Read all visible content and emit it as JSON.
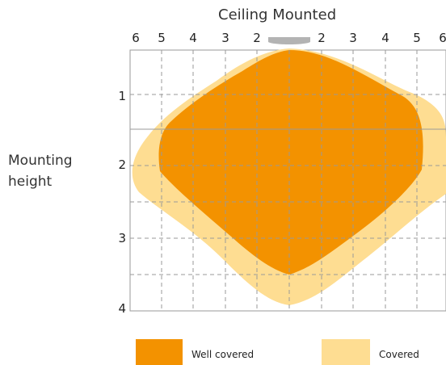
{
  "title": "Ceiling Mounted",
  "y_axis_label_line1": "Mounting",
  "y_axis_label_line2": "height",
  "x_ticks": [
    "6",
    "5",
    "4",
    "3",
    "2",
    "2",
    "3",
    "4",
    "5",
    "6"
  ],
  "y_ticks": [
    "1",
    "2",
    "3",
    "4"
  ],
  "legend": {
    "well_covered": "Well covered",
    "covered": "Covered"
  },
  "colors": {
    "well_covered": "#f39200",
    "covered": "#fedd92",
    "grid": "#9a9a9a",
    "sensor": "#b3b3b3"
  },
  "sensor_icon": "ceiling-sensor-icon"
}
